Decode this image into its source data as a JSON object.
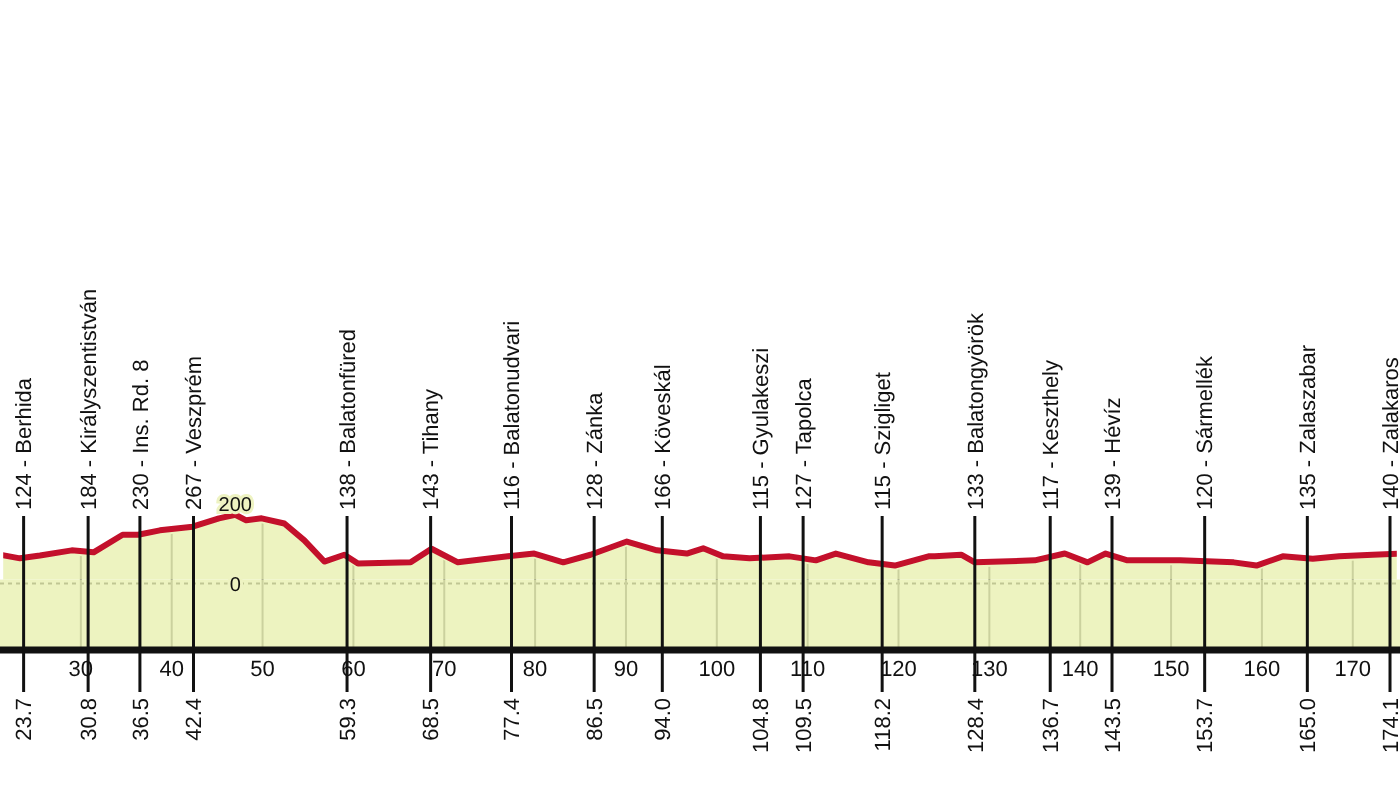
{
  "chart_data": {
    "type": "area",
    "xlim": [
      21.1,
      175.2
    ],
    "ylim": [
      -166,
      1458
    ],
    "xticks": [
      30,
      40,
      50,
      60,
      70,
      80,
      90,
      100,
      110,
      120,
      130,
      140,
      150,
      160,
      170
    ],
    "yticks": [
      0,
      200
    ],
    "grid": true,
    "series": [
      {
        "color": "#e9f0b0",
        "x": [
          21.1,
          23.3,
          25.5,
          29,
          31.4,
          34.6,
          36.3,
          38.7,
          42.3,
          45.2,
          47,
          48.2,
          49.9,
          52.4,
          54.6,
          56.8,
          59,
          60.5,
          66.3,
          68.6,
          71.5,
          77,
          79.9,
          83.1,
          86.1,
          90.1,
          93.4,
          96.7,
          98.5,
          100.7,
          103.6,
          108,
          110.9,
          113.1,
          116.7,
          119.6,
          123.3,
          124,
          126.9,
          128.4,
          135,
          138.3,
          140.8,
          142.8,
          145.2,
          151,
          156.9,
          159.4,
          162.3,
          165.6,
          168.5,
          172.2,
          175.2
        ],
        "values": [
          72,
          63,
          70,
          83,
          78,
          122,
          122,
          133,
          142,
          163,
          172,
          158,
          163,
          150,
          108,
          55,
          72,
          50,
          53,
          87,
          53,
          68,
          75,
          53,
          72,
          105,
          83,
          75,
          88,
          68,
          63,
          68,
          58,
          75,
          53,
          45,
          68,
          68,
          72,
          53,
          58,
          75,
          53,
          75,
          58,
          58,
          53,
          45,
          68,
          62,
          68,
          72,
          75
        ]
      }
    ],
    "annotations": [
      "23.7",
      "30.8",
      "36.5",
      "42.4",
      "59.3",
      "68.5",
      "77.4",
      "86.5",
      "94.0",
      "104.8",
      "109.5",
      "118.2",
      "128.4",
      "136.7",
      "143.5",
      "153.7",
      "165.0",
      "174.1"
    ],
    "ref_lines": [
      {
        "axis": "y",
        "value": 0,
        "line_style": "dotted"
      },
      {
        "axis": "x",
        "value": 23.7,
        "label": "124 - Berhida"
      },
      {
        "axis": "x",
        "value": 30.8,
        "label": "184 - Királyszentistván"
      },
      {
        "axis": "x",
        "value": 36.5,
        "label": "230 - Ins. Rd. 8"
      },
      {
        "axis": "x",
        "value": 42.4,
        "label": "267 - Veszprém"
      },
      {
        "axis": "x",
        "value": 59.3,
        "label": "138 - Balatonfüred"
      },
      {
        "axis": "x",
        "value": 68.5,
        "label": "143 - Tihany"
      },
      {
        "axis": "x",
        "value": 77.4,
        "label": "116 - Balatonudvari"
      },
      {
        "axis": "x",
        "value": 86.5,
        "label": "128 - Zánka"
      },
      {
        "axis": "x",
        "value": 94.0,
        "label": "166 - Köveskál"
      },
      {
        "axis": "x",
        "value": 104.8,
        "label": "115 - Gyulakeszi"
      },
      {
        "axis": "x",
        "value": 109.5,
        "label": "127 - Tapolca"
      },
      {
        "axis": "x",
        "value": 118.2,
        "label": "115 - Szigliget"
      },
      {
        "axis": "x",
        "value": 128.4,
        "label": "133 - Balatongyörök"
      },
      {
        "axis": "x",
        "value": 136.7,
        "label": "117 - Keszthely"
      },
      {
        "axis": "x",
        "value": 143.5,
        "label": "139 - Hévíz"
      },
      {
        "axis": "x",
        "value": 153.7,
        "label": "120 - Sármellék"
      },
      {
        "axis": "x",
        "value": 165.0,
        "label": "135 - Zalaszabar"
      },
      {
        "axis": "x",
        "value": 174.1,
        "label": "140 - Zalakaros"
      }
    ]
  }
}
